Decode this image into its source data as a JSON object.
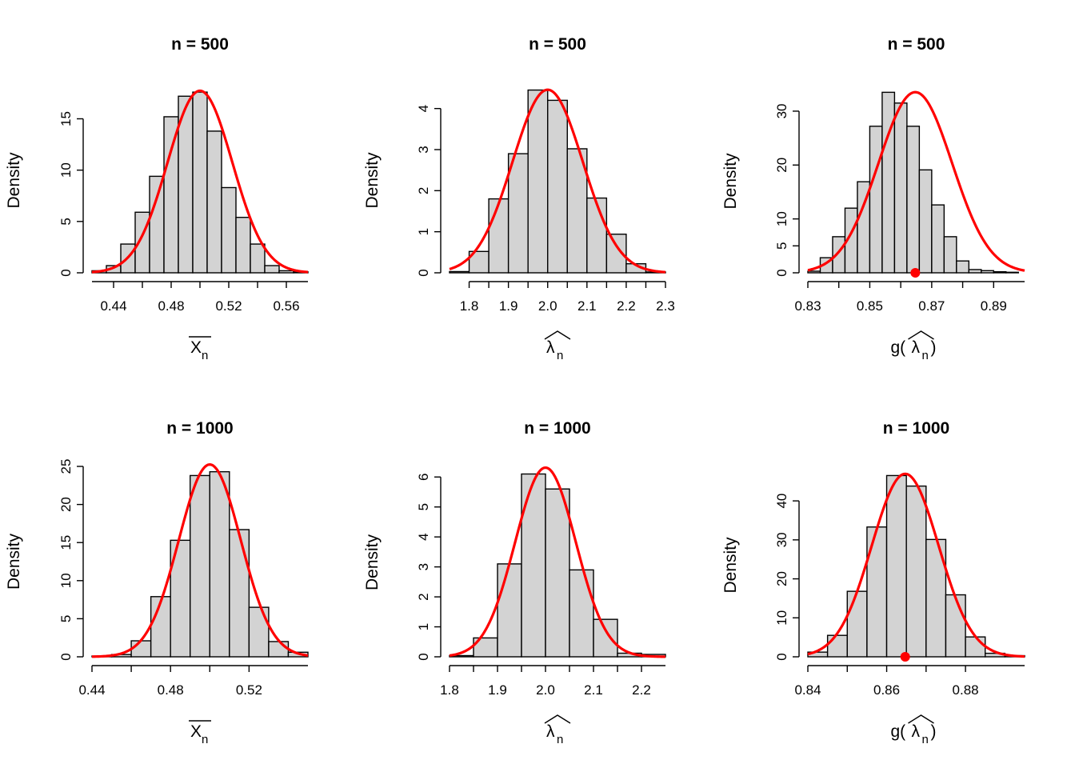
{
  "chart_data": [
    {
      "type": "bar",
      "title": "n =  500",
      "ylabel": "Density",
      "xlabel": "X_n",
      "xlabel_style": "overline",
      "breaks": [
        0.425,
        0.435,
        0.445,
        0.455,
        0.465,
        0.475,
        0.485,
        0.495,
        0.505,
        0.515,
        0.525,
        0.535,
        0.545,
        0.555,
        0.565,
        0.575
      ],
      "values": [
        0.2,
        0.7,
        2.8,
        5.9,
        9.4,
        15.2,
        17.2,
        17.6,
        13.8,
        8.3,
        5.4,
        2.8,
        0.7,
        0.2,
        0.1
      ],
      "xlim": [
        0.425,
        0.575
      ],
      "ylim": [
        0,
        18
      ],
      "xticks": [
        0.44,
        0.48,
        0.52,
        0.56
      ],
      "xtick_labels": [
        "0.44",
        "0.48",
        "0.52",
        "0.56"
      ],
      "yticks": [
        0,
        5,
        10,
        15
      ],
      "ytick_labels": [
        "0",
        "5",
        "10",
        "15"
      ],
      "xaxis_range": [
        0.425,
        0.575
      ],
      "curve": {
        "mean": 0.5,
        "sd": 0.0225
      },
      "marker": null
    },
    {
      "type": "bar",
      "title": "n =  500",
      "ylabel": "Density",
      "xlabel": "λ_n",
      "xlabel_style": "widehat",
      "breaks": [
        1.75,
        1.8,
        1.85,
        1.9,
        1.95,
        2.0,
        2.05,
        2.1,
        2.15,
        2.2,
        2.25,
        2.3
      ],
      "values": [
        0.03,
        0.52,
        1.8,
        2.9,
        4.45,
        4.2,
        3.02,
        1.82,
        0.94,
        0.22,
        0.02
      ],
      "xlim": [
        1.75,
        2.3
      ],
      "ylim": [
        0,
        4.5
      ],
      "xticks": [
        1.8,
        1.9,
        2.0,
        2.1,
        2.2,
        2.3
      ],
      "xtick_labels": [
        "1.8",
        "1.9",
        "2.0",
        "2.1",
        "2.2",
        "2.3"
      ],
      "yticks": [
        0,
        1,
        2,
        3,
        4
      ],
      "ytick_labels": [
        "0",
        "1",
        "2",
        "3",
        "4"
      ],
      "xaxis_range": [
        1.8,
        2.3
      ],
      "curve": {
        "mean": 2.0,
        "sd": 0.0895
      },
      "marker": null
    },
    {
      "type": "bar",
      "title": "n =  500",
      "ylabel": "Density",
      "xlabel": "g(λ_n)",
      "xlabel_style": "g-widehat",
      "breaks": [
        0.83,
        0.834,
        0.838,
        0.842,
        0.846,
        0.85,
        0.854,
        0.858,
        0.862,
        0.866,
        0.87,
        0.874,
        0.878,
        0.882,
        0.886,
        0.89,
        0.894,
        0.898
      ],
      "values": [
        0.3,
        2.8,
        6.7,
        12.0,
        16.9,
        27.2,
        33.5,
        31.5,
        27.2,
        19.1,
        12.6,
        6.7,
        2.2,
        0.6,
        0.4,
        0.2,
        0.1
      ],
      "xlim": [
        0.83,
        0.9
      ],
      "ylim": [
        0,
        34
      ],
      "xticks": [
        0.83,
        0.85,
        0.87,
        0.89
      ],
      "xtick_labels": [
        "0.83",
        "0.85",
        "0.87",
        "0.89"
      ],
      "yticks": [
        0,
        5,
        10,
        20,
        30
      ],
      "ytick_labels": [
        "0",
        "5",
        "10",
        "20",
        "30"
      ],
      "xaxis_range": [
        0.83,
        0.9
      ],
      "curve": {
        "mean": 0.8647,
        "sd": 0.0119
      },
      "marker": {
        "x": 0.8647,
        "y": 0
      }
    },
    {
      "type": "bar",
      "title": "n =  1000",
      "ylabel": "Density",
      "xlabel": "X_n",
      "xlabel_style": "overline",
      "breaks": [
        0.44,
        0.45,
        0.46,
        0.47,
        0.48,
        0.49,
        0.5,
        0.51,
        0.52,
        0.53,
        0.54,
        0.55
      ],
      "values": [
        0.1,
        0.3,
        2.1,
        7.9,
        15.3,
        23.8,
        24.3,
        16.7,
        6.5,
        2.0,
        0.6
      ],
      "xlim": [
        0.44,
        0.55
      ],
      "ylim": [
        0,
        25
      ],
      "xticks": [
        0.44,
        0.48,
        0.52
      ],
      "xtick_labels": [
        "0.44",
        "0.48",
        "0.52"
      ],
      "yticks": [
        0,
        5,
        10,
        15,
        20,
        25
      ],
      "ytick_labels": [
        "0",
        "5",
        "10",
        "15",
        "20",
        "25"
      ],
      "xaxis_range": [
        0.44,
        0.55
      ],
      "curve": {
        "mean": 0.5,
        "sd": 0.0158
      },
      "marker": null
    },
    {
      "type": "bar",
      "title": "n =  1000",
      "ylabel": "Density",
      "xlabel": "λ_n",
      "xlabel_style": "widehat",
      "breaks": [
        1.8,
        1.85,
        1.9,
        1.95,
        2.0,
        2.05,
        2.1,
        2.15,
        2.2,
        2.25
      ],
      "values": [
        0.04,
        0.63,
        3.1,
        6.1,
        5.6,
        2.9,
        1.25,
        0.12,
        0.08
      ],
      "xlim": [
        1.8,
        2.25
      ],
      "ylim": [
        0,
        6.3
      ],
      "xticks": [
        1.8,
        1.9,
        2.0,
        2.1,
        2.2
      ],
      "xtick_labels": [
        "1.8",
        "1.9",
        "2.0",
        "2.1",
        "2.2"
      ],
      "yticks": [
        0,
        1,
        2,
        3,
        4,
        5,
        6
      ],
      "ytick_labels": [
        "0",
        "1",
        "2",
        "3",
        "4",
        "5",
        "6"
      ],
      "xaxis_range": [
        1.8,
        2.25
      ],
      "curve": {
        "mean": 2.0,
        "sd": 0.0632
      },
      "marker": null
    },
    {
      "type": "bar",
      "title": "n =  1000",
      "ylabel": "Density",
      "xlabel": "g(λ_n)",
      "xlabel_style": "g-widehat",
      "breaks": [
        0.84,
        0.845,
        0.85,
        0.855,
        0.86,
        0.865,
        0.87,
        0.875,
        0.88,
        0.885,
        0.89,
        0.895
      ],
      "values": [
        1.2,
        5.5,
        16.8,
        33.3,
        46.5,
        43.8,
        30.1,
        15.9,
        5.1,
        0.9,
        0.3
      ],
      "xlim": [
        0.84,
        0.895
      ],
      "ylim": [
        0,
        47
      ],
      "xticks": [
        0.84,
        0.86,
        0.88
      ],
      "xtick_labels": [
        "0.84",
        "0.86",
        "0.88"
      ],
      "yticks": [
        0,
        10,
        20,
        30,
        40
      ],
      "ytick_labels": [
        "0",
        "10",
        "20",
        "30",
        "40"
      ],
      "xaxis_range": [
        0.84,
        0.895
      ],
      "curve": {
        "mean": 0.8647,
        "sd": 0.0085
      },
      "marker": {
        "x": 0.8647,
        "y": 0
      }
    }
  ],
  "colors": {
    "bar_fill": "#d3d3d3",
    "bar_stroke": "#000000",
    "curve": "#ff0000",
    "marker": "#ff0000"
  }
}
